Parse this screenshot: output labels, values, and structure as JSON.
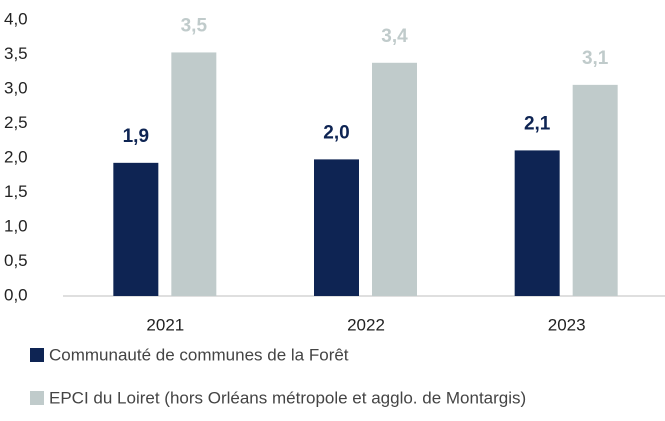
{
  "chart_data": {
    "type": "bar",
    "categories": [
      "2021",
      "2022",
      "2023"
    ],
    "series": [
      {
        "name": "Communauté de communes de la Forêt",
        "color": "#0e2453",
        "values": [
          1.93,
          1.98,
          2.11
        ],
        "value_labels": [
          "1,9",
          "2,0",
          "2,1"
        ]
      },
      {
        "name": "EPCI du Loiret (hors Orléans métropole et agglo. de Montargis)",
        "color": "#c0cbcb",
        "values": [
          3.53,
          3.38,
          3.06
        ],
        "value_labels": [
          "3,5",
          "3,4",
          "3,1"
        ]
      }
    ],
    "ylim": [
      0,
      4
    ],
    "yticks": [
      {
        "value": 0,
        "label": "0,0"
      },
      {
        "value": 0.5,
        "label": "0,5"
      },
      {
        "value": 1,
        "label": "1,0"
      },
      {
        "value": 1.5,
        "label": "1,5"
      },
      {
        "value": 2,
        "label": "2,0"
      },
      {
        "value": 2.5,
        "label": "2,5"
      },
      {
        "value": 3,
        "label": "3,0"
      },
      {
        "value": 3.5,
        "label": "3,5"
      },
      {
        "value": 4,
        "label": "4,0"
      }
    ],
    "grid": false,
    "legend": "bottom"
  }
}
